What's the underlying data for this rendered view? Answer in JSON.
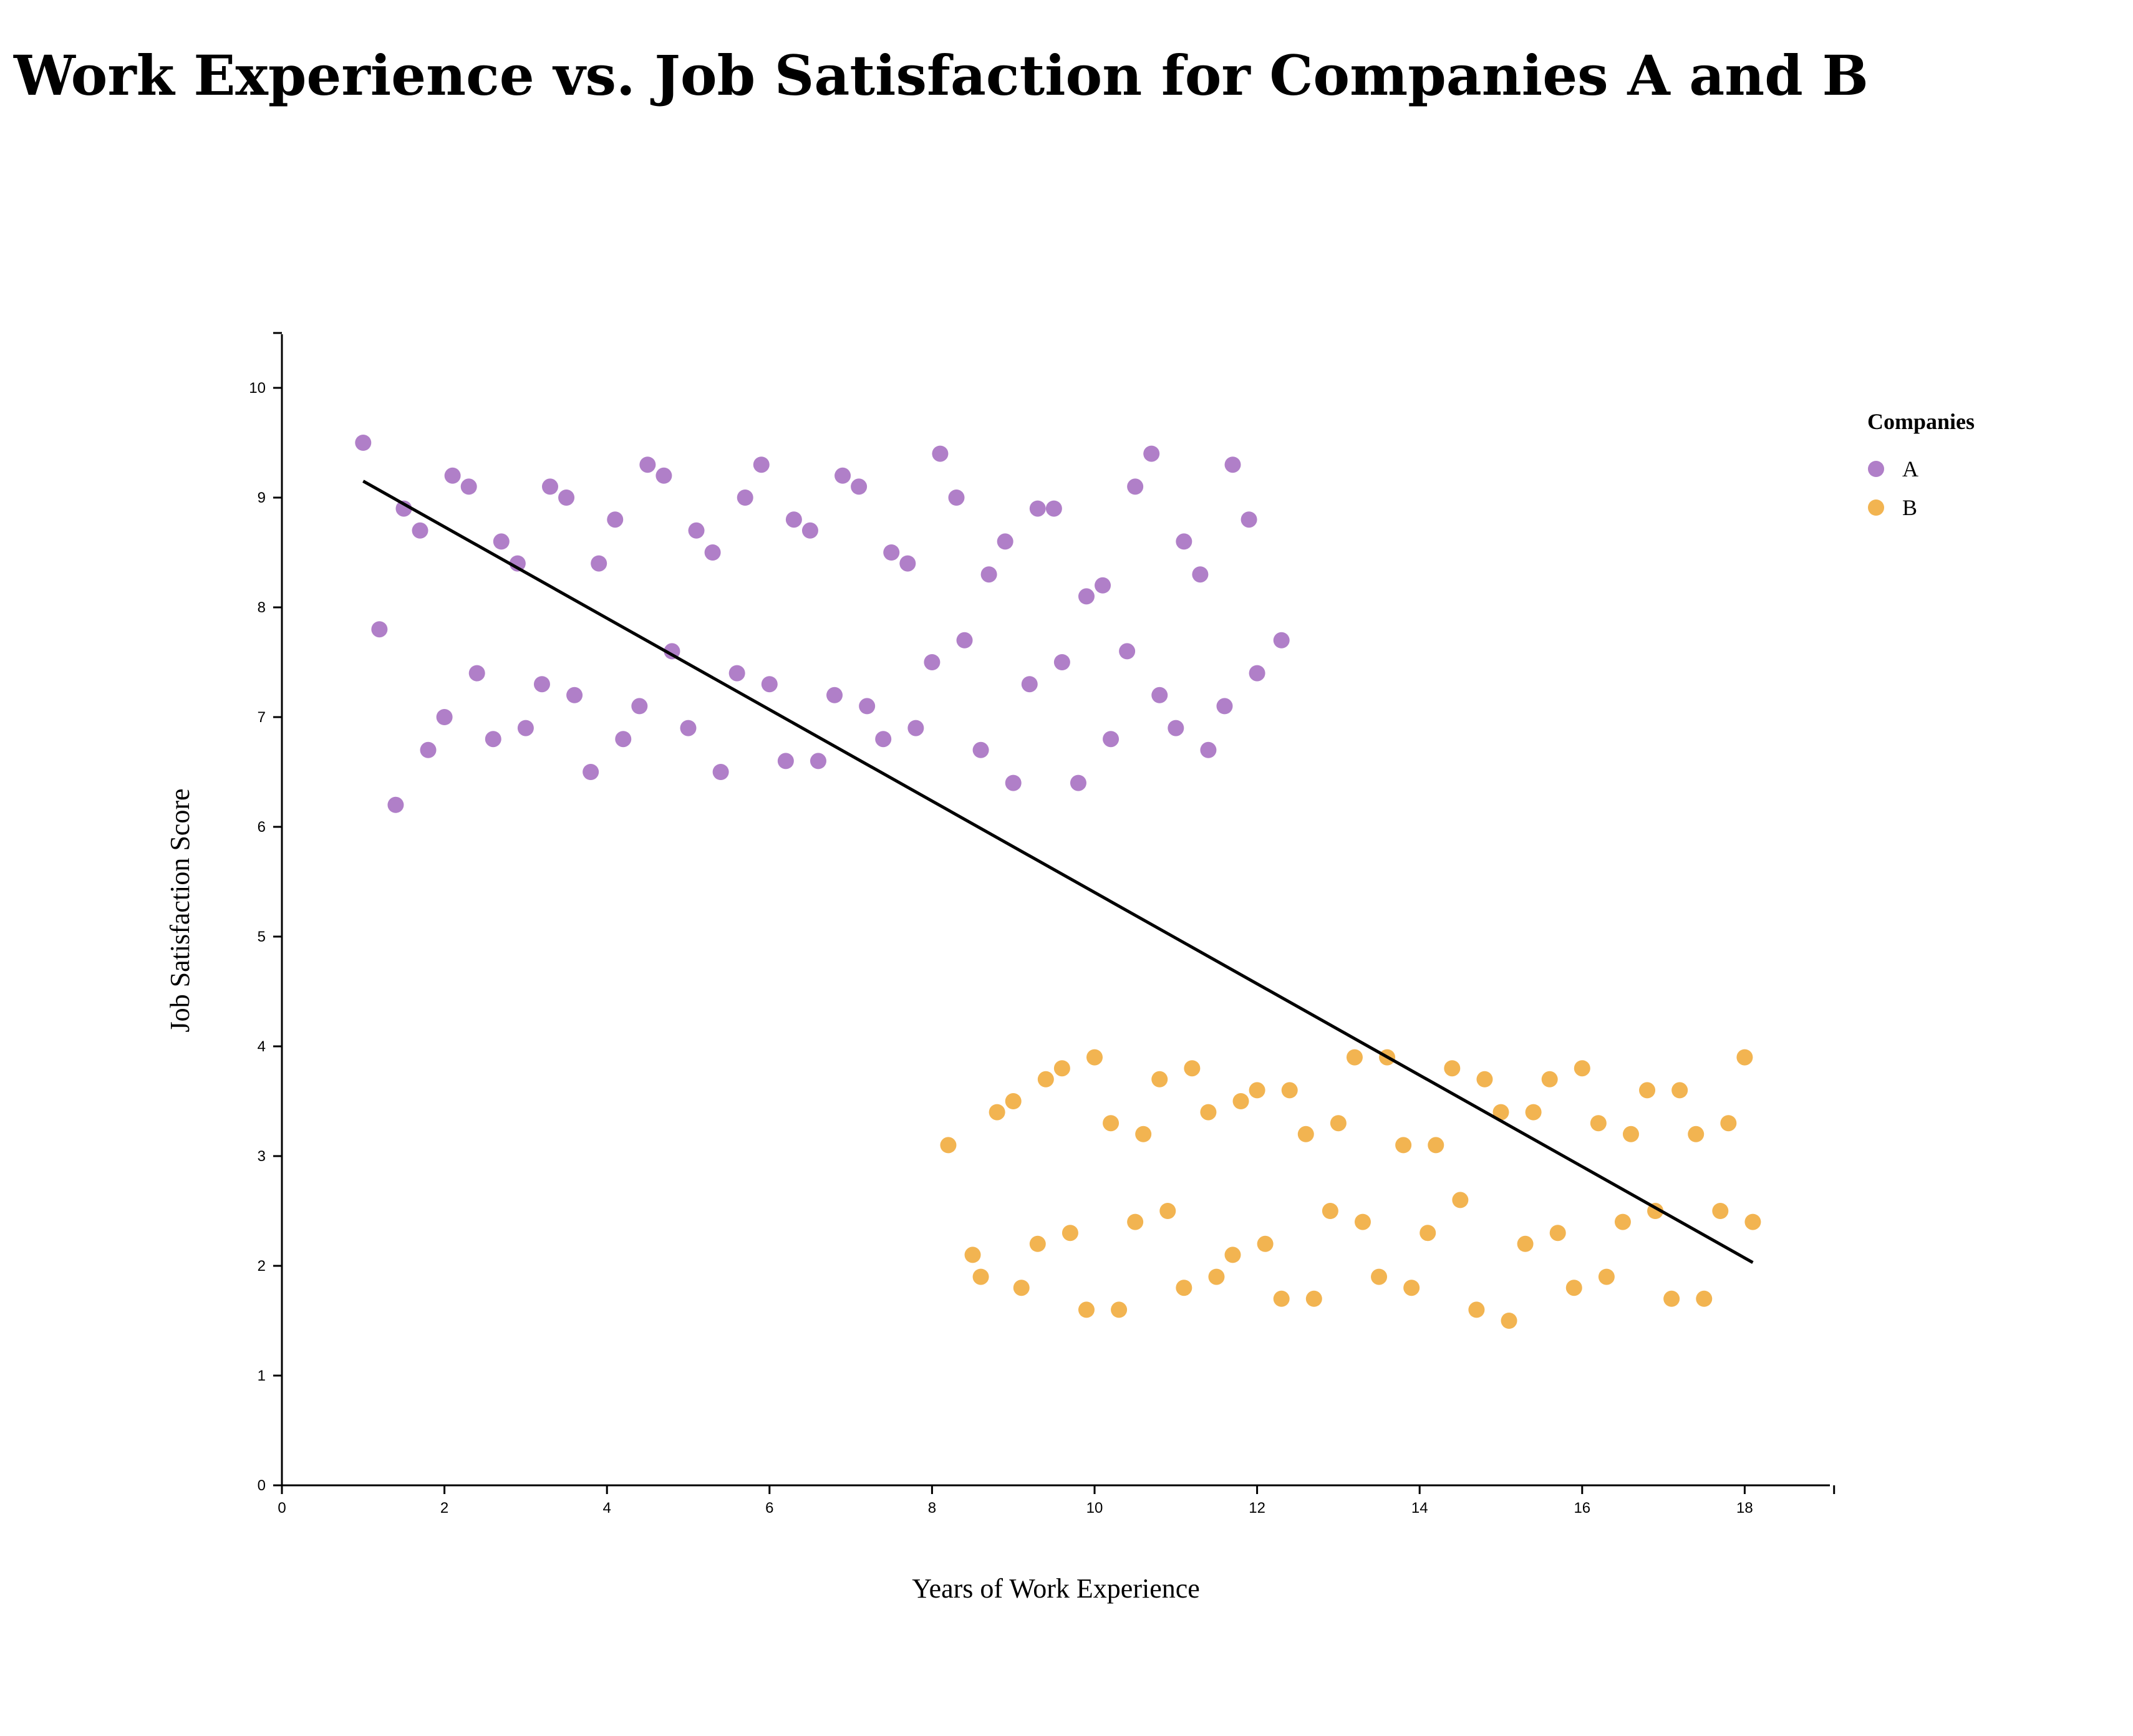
{
  "colors": {
    "A": "#b07fc8",
    "B": "#f2b451",
    "trend": "#000000"
  },
  "chart_data": {
    "type": "scatter",
    "title": "Work Experience vs. Job Satisfaction for Companies A and B",
    "xlabel": "Years of Work Experience",
    "ylabel": "Job Satisfaction Score",
    "xlim": [
      0,
      19.1
    ],
    "ylim": [
      0,
      10.5
    ],
    "x_ticks": [
      0,
      2,
      4,
      6,
      8,
      10,
      12,
      14,
      16,
      18
    ],
    "y_ticks": [
      0,
      1,
      2,
      3,
      4,
      5,
      6,
      7,
      8,
      9,
      10
    ],
    "grid": false,
    "legend": {
      "title": "Companies",
      "position": "top-right",
      "entries": [
        "A",
        "B"
      ]
    },
    "trendline": {
      "x": [
        1.0,
        18.1
      ],
      "y": [
        9.15,
        2.03
      ]
    },
    "series": [
      {
        "name": "A",
        "color": "#b07fc8",
        "points": [
          [
            1.0,
            9.5
          ],
          [
            1.2,
            7.8
          ],
          [
            1.4,
            6.2
          ],
          [
            1.5,
            8.9
          ],
          [
            1.7,
            8.7
          ],
          [
            1.8,
            6.7
          ],
          [
            2.0,
            7.0
          ],
          [
            2.1,
            9.2
          ],
          [
            2.3,
            9.1
          ],
          [
            2.4,
            7.4
          ],
          [
            2.6,
            6.8
          ],
          [
            2.7,
            8.6
          ],
          [
            2.9,
            8.4
          ],
          [
            3.0,
            6.9
          ],
          [
            3.2,
            7.3
          ],
          [
            3.3,
            9.1
          ],
          [
            3.5,
            9.0
          ],
          [
            3.6,
            7.2
          ],
          [
            3.8,
            6.5
          ],
          [
            3.9,
            8.4
          ],
          [
            4.1,
            8.8
          ],
          [
            4.2,
            6.8
          ],
          [
            4.4,
            7.1
          ],
          [
            4.5,
            9.3
          ],
          [
            4.7,
            9.2
          ],
          [
            4.8,
            7.6
          ],
          [
            5.0,
            6.9
          ],
          [
            5.1,
            8.7
          ],
          [
            5.3,
            8.5
          ],
          [
            5.4,
            6.5
          ],
          [
            5.6,
            7.4
          ],
          [
            5.7,
            9.0
          ],
          [
            5.9,
            9.3
          ],
          [
            6.0,
            7.3
          ],
          [
            6.2,
            6.6
          ],
          [
            6.3,
            8.8
          ],
          [
            6.5,
            8.7
          ],
          [
            6.6,
            6.6
          ],
          [
            6.8,
            7.2
          ],
          [
            6.9,
            9.2
          ],
          [
            7.1,
            9.1
          ],
          [
            7.2,
            7.1
          ],
          [
            7.4,
            6.8
          ],
          [
            7.5,
            8.5
          ],
          [
            7.7,
            8.4
          ],
          [
            7.8,
            6.9
          ],
          [
            8.0,
            7.5
          ],
          [
            8.1,
            9.4
          ],
          [
            8.3,
            9.0
          ],
          [
            8.4,
            7.7
          ],
          [
            8.6,
            6.7
          ],
          [
            8.7,
            8.3
          ],
          [
            8.9,
            8.6
          ],
          [
            9.0,
            6.4
          ],
          [
            9.2,
            7.3
          ],
          [
            9.3,
            8.9
          ],
          [
            9.5,
            8.9
          ],
          [
            9.6,
            7.5
          ],
          [
            9.8,
            6.4
          ],
          [
            9.9,
            8.1
          ],
          [
            10.1,
            8.2
          ],
          [
            10.2,
            6.8
          ],
          [
            10.4,
            7.6
          ],
          [
            10.5,
            9.1
          ],
          [
            10.7,
            9.4
          ],
          [
            10.8,
            7.2
          ],
          [
            11.0,
            6.9
          ],
          [
            11.1,
            8.6
          ],
          [
            11.3,
            8.3
          ],
          [
            11.4,
            6.7
          ],
          [
            11.6,
            7.1
          ],
          [
            11.7,
            9.3
          ],
          [
            11.9,
            8.8
          ],
          [
            12.0,
            7.4
          ],
          [
            12.3,
            7.7
          ]
        ]
      },
      {
        "name": "B",
        "color": "#f2b451",
        "points": [
          [
            8.2,
            3.1
          ],
          [
            8.5,
            2.1
          ],
          [
            8.6,
            1.9
          ],
          [
            8.8,
            3.4
          ],
          [
            9.0,
            3.5
          ],
          [
            9.1,
            1.8
          ],
          [
            9.3,
            2.2
          ],
          [
            9.4,
            3.7
          ],
          [
            9.6,
            3.8
          ],
          [
            9.7,
            2.3
          ],
          [
            9.9,
            1.6
          ],
          [
            10.0,
            3.9
          ],
          [
            10.2,
            3.3
          ],
          [
            10.3,
            1.6
          ],
          [
            10.5,
            2.4
          ],
          [
            10.6,
            3.2
          ],
          [
            10.8,
            3.7
          ],
          [
            10.9,
            2.5
          ],
          [
            11.1,
            1.8
          ],
          [
            11.2,
            3.8
          ],
          [
            11.4,
            3.4
          ],
          [
            11.5,
            1.9
          ],
          [
            11.7,
            2.1
          ],
          [
            11.8,
            3.5
          ],
          [
            12.0,
            3.6
          ],
          [
            12.1,
            2.2
          ],
          [
            12.3,
            1.7
          ],
          [
            12.4,
            3.6
          ],
          [
            12.6,
            3.2
          ],
          [
            12.7,
            1.7
          ],
          [
            12.9,
            2.5
          ],
          [
            13.0,
            3.3
          ],
          [
            13.2,
            3.9
          ],
          [
            13.3,
            2.4
          ],
          [
            13.5,
            1.9
          ],
          [
            13.6,
            3.9
          ],
          [
            13.8,
            3.1
          ],
          [
            13.9,
            1.8
          ],
          [
            14.1,
            2.3
          ],
          [
            14.2,
            3.1
          ],
          [
            14.4,
            3.8
          ],
          [
            14.5,
            2.6
          ],
          [
            14.7,
            1.6
          ],
          [
            14.8,
            3.7
          ],
          [
            15.0,
            3.4
          ],
          [
            15.1,
            1.5
          ],
          [
            15.3,
            2.2
          ],
          [
            15.4,
            3.4
          ],
          [
            15.6,
            3.7
          ],
          [
            15.7,
            2.3
          ],
          [
            15.9,
            1.8
          ],
          [
            16.0,
            3.8
          ],
          [
            16.2,
            3.3
          ],
          [
            16.3,
            1.9
          ],
          [
            16.5,
            2.4
          ],
          [
            16.6,
            3.2
          ],
          [
            16.8,
            3.6
          ],
          [
            16.9,
            2.5
          ],
          [
            17.1,
            1.7
          ],
          [
            17.2,
            3.6
          ],
          [
            17.4,
            3.2
          ],
          [
            17.5,
            1.7
          ],
          [
            17.7,
            2.5
          ],
          [
            17.8,
            3.3
          ],
          [
            18.0,
            3.9
          ],
          [
            18.1,
            2.4
          ]
        ]
      }
    ]
  }
}
